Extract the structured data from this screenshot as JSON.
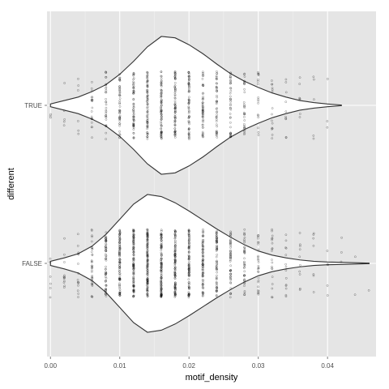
{
  "chart_data": {
    "type": "violin",
    "title": "",
    "xlabel": "motif_density",
    "ylabel": "different",
    "xlim": [
      -0.0005,
      0.047
    ],
    "x_ticks": [
      "0.00",
      "0.01",
      "0.02",
      "0.03",
      "0.04"
    ],
    "x_tick_values": [
      0.0,
      0.01,
      0.02,
      0.03,
      0.04
    ],
    "categories": [
      "FALSE",
      "TRUE"
    ],
    "grid": true,
    "legend": "none",
    "colors": {
      "panel": "#e5e5e5",
      "grid_major": "#ffffff",
      "grid_minor": "#f2f2f2",
      "violin_fill": "#ffffff",
      "violin_stroke": "#333333",
      "points": "#000000"
    },
    "series": [
      {
        "name": "TRUE",
        "density_x": [
          0.0,
          0.002,
          0.004,
          0.006,
          0.008,
          0.01,
          0.012,
          0.014,
          0.016,
          0.018,
          0.02,
          0.022,
          0.024,
          0.026,
          0.028,
          0.03,
          0.032,
          0.034,
          0.036,
          0.038,
          0.04,
          0.042
        ],
        "density_width": [
          0.02,
          0.07,
          0.12,
          0.2,
          0.3,
          0.45,
          0.64,
          0.85,
          1.0,
          0.98,
          0.88,
          0.75,
          0.6,
          0.46,
          0.35,
          0.26,
          0.18,
          0.12,
          0.07,
          0.04,
          0.02,
          0.005
        ],
        "jitter_x_values": [
          0.0,
          0.002,
          0.004,
          0.006,
          0.008,
          0.01,
          0.012,
          0.014,
          0.016,
          0.018,
          0.02,
          0.022,
          0.024,
          0.026,
          0.028,
          0.03,
          0.032,
          0.034,
          0.036,
          0.038,
          0.04
        ],
        "jitter_counts": [
          3,
          5,
          6,
          20,
          30,
          45,
          60,
          70,
          75,
          72,
          65,
          55,
          45,
          40,
          30,
          18,
          15,
          10,
          7,
          5,
          3
        ]
      },
      {
        "name": "FALSE",
        "density_x": [
          0.0,
          0.002,
          0.004,
          0.006,
          0.008,
          0.01,
          0.012,
          0.014,
          0.016,
          0.018,
          0.02,
          0.022,
          0.024,
          0.026,
          0.028,
          0.03,
          0.032,
          0.034,
          0.036,
          0.038,
          0.04,
          0.042,
          0.044,
          0.046
        ],
        "density_width": [
          0.03,
          0.08,
          0.14,
          0.25,
          0.42,
          0.64,
          0.86,
          1.0,
          0.97,
          0.88,
          0.76,
          0.63,
          0.5,
          0.38,
          0.27,
          0.18,
          0.12,
          0.08,
          0.05,
          0.03,
          0.02,
          0.015,
          0.01,
          0.004
        ],
        "jitter_x_values": [
          0.0,
          0.002,
          0.004,
          0.006,
          0.008,
          0.01,
          0.012,
          0.014,
          0.016,
          0.018,
          0.02,
          0.022,
          0.024,
          0.026,
          0.028,
          0.03,
          0.032,
          0.034,
          0.036,
          0.038,
          0.04,
          0.042,
          0.044,
          0.046
        ],
        "jitter_counts": [
          6,
          12,
          15,
          35,
          60,
          90,
          110,
          120,
          115,
          105,
          95,
          80,
          65,
          50,
          40,
          28,
          20,
          14,
          10,
          7,
          5,
          3,
          2,
          1
        ]
      }
    ]
  }
}
